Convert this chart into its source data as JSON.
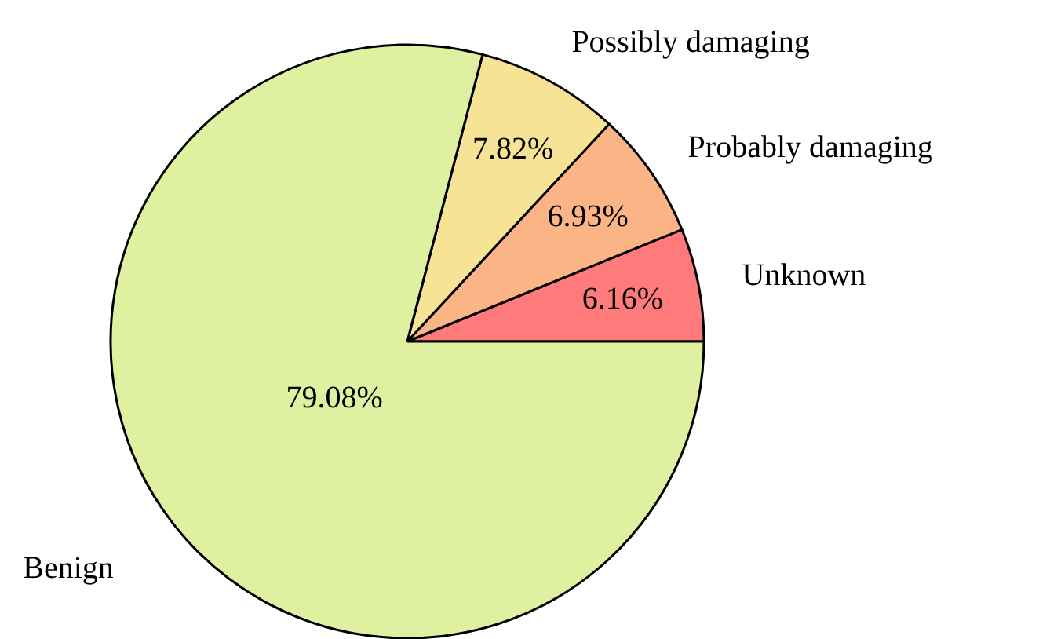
{
  "chart_data": {
    "type": "pie",
    "categories": [
      "Unknown",
      "Probably damaging",
      "Possibly damaging",
      "Benign"
    ],
    "values": [
      6.16,
      6.93,
      7.82,
      79.08
    ],
    "value_labels": [
      "6.16%",
      "6.93%",
      "7.82%",
      "79.08%"
    ],
    "colors": [
      "#ff7b7b",
      "#fbb486",
      "#f6e396",
      "#dff0a0"
    ]
  }
}
